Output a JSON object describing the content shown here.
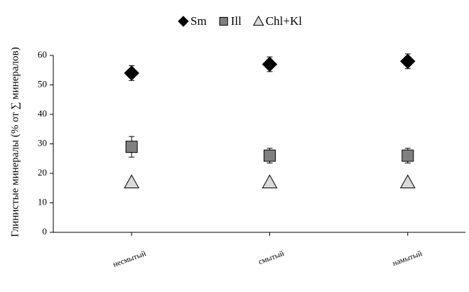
{
  "chart_data": {
    "type": "scatter",
    "y_label": "Глинистые минералы  (% от ∑ минералов)",
    "categories": [
      "несмытый",
      "смытый",
      "намытый"
    ],
    "series": [
      {
        "name": "Sm",
        "color": "#000000",
        "marker": "diamond",
        "values": [
          54,
          57,
          58
        ],
        "errors": [
          2.5,
          2.5,
          2.5
        ]
      },
      {
        "name": "Ill",
        "color": "#808080",
        "marker": "square",
        "values": [
          29,
          26,
          26
        ],
        "errors": [
          3.5,
          2.5,
          2.5
        ]
      },
      {
        "name": "Chl+Kl",
        "color": "#d9d9d9",
        "marker": "triangle",
        "values": [
          17,
          17,
          17
        ]
      }
    ],
    "ylim": [
      0,
      60
    ],
    "yticks": [
      0,
      10,
      20,
      30,
      40,
      50,
      60
    ],
    "grid": false,
    "legend": "top"
  }
}
